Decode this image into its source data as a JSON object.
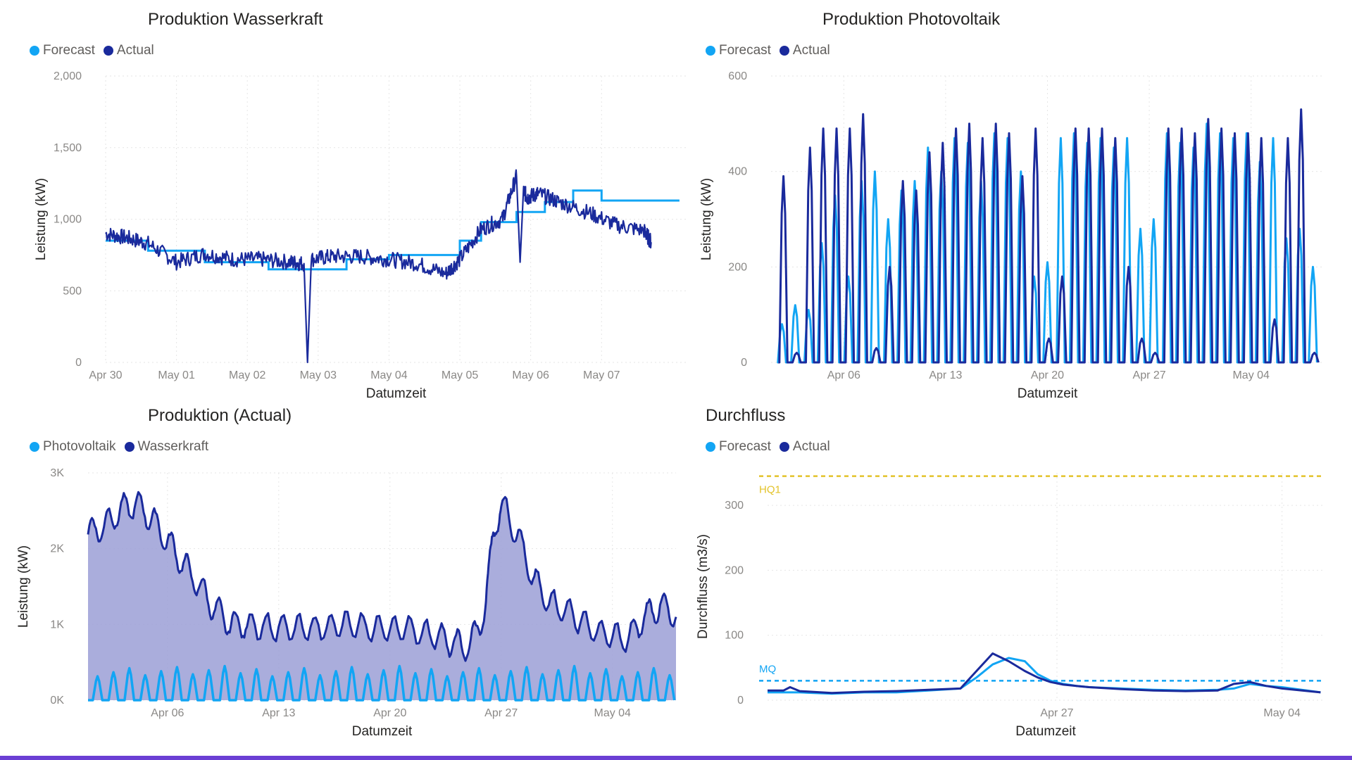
{
  "chart_data": [
    {
      "type": "line",
      "title": "Produktion Wasserkraft",
      "xlabel": "Datumzeit",
      "ylabel": "Leistung (kW)",
      "ylim": [
        0,
        2000
      ],
      "yticks": [
        "0",
        "500",
        "1,000",
        "1,500",
        "2,000"
      ],
      "yticks_values": [
        0,
        500,
        1000,
        1500,
        2000
      ],
      "xticks": [
        "Apr 30",
        "May 01",
        "May 02",
        "May 03",
        "May 04",
        "May 05",
        "May 06",
        "May 07"
      ],
      "xlim": [
        0,
        8.2
      ],
      "grid": true,
      "legend": "top-left",
      "series": [
        {
          "name": "Forecast",
          "color": "#12a5f4",
          "x": [
            0,
            0.6,
            0.6,
            1.4,
            1.4,
            2.3,
            2.3,
            3.4,
            3.4,
            4.0,
            4.0,
            5.0,
            5.0,
            5.3,
            5.3,
            5.8,
            5.8,
            6.2,
            6.2,
            6.6,
            6.6,
            7.0,
            7.0,
            8.1
          ],
          "y": [
            850,
            850,
            780,
            780,
            700,
            700,
            650,
            650,
            720,
            720,
            750,
            750,
            850,
            850,
            980,
            980,
            1050,
            1050,
            1120,
            1120,
            1200,
            1200,
            1130,
            1130
          ]
        },
        {
          "name": "Actual",
          "color": "#1a2a9c",
          "x": [
            0,
            0.3,
            0.6,
            1.0,
            1.4,
            1.8,
            2.2,
            2.6,
            2.8,
            2.85,
            2.9,
            3.2,
            3.6,
            4.0,
            4.4,
            4.8,
            5.0,
            5.3,
            5.6,
            5.8,
            5.85,
            5.9,
            5.95,
            6.1,
            6.4,
            6.8,
            7.2,
            7.6,
            7.7
          ],
          "y": [
            900,
            870,
            830,
            700,
            760,
            720,
            720,
            700,
            690,
            0,
            720,
            740,
            740,
            720,
            690,
            620,
            720,
            930,
            1000,
            1300,
            700,
            1200,
            1150,
            1180,
            1120,
            1050,
            960,
            920,
            840
          ]
        }
      ]
    },
    {
      "type": "line",
      "title": "Produktion Photovoltaik",
      "xlabel": "Datumzeit",
      "ylabel": "Leistung (kW)",
      "ylim": [
        0,
        600
      ],
      "yticks": [
        "0",
        "200",
        "400",
        "600"
      ],
      "yticks_values": [
        0,
        200,
        400,
        600
      ],
      "xticks": [
        "Apr 06",
        "Apr 13",
        "Apr 20",
        "Apr 27",
        "May 04"
      ],
      "xticks_values": [
        5,
        12,
        19,
        26,
        33
      ],
      "xlim": [
        0,
        38
      ],
      "grid": true,
      "legend": "top-left",
      "series": [
        {
          "name": "Forecast",
          "color": "#12a5f4",
          "peaks": [
            80,
            120,
            110,
            250,
            350,
            180,
            380,
            400,
            300,
            360,
            380,
            450,
            400,
            470,
            460,
            380,
            480,
            470,
            400,
            180,
            210,
            470,
            480,
            460,
            470,
            450,
            470,
            280,
            300,
            480,
            460,
            450,
            500,
            480,
            470,
            480,
            420,
            470,
            260,
            280,
            200
          ]
        },
        {
          "name": "Actual",
          "color": "#1a2a9c",
          "peaks": [
            390,
            20,
            450,
            490,
            490,
            490,
            520,
            30,
            200,
            380,
            360,
            440,
            460,
            490,
            500,
            470,
            500,
            480,
            390,
            490,
            50,
            180,
            490,
            490,
            490,
            470,
            200,
            50,
            20,
            490,
            490,
            480,
            510,
            490,
            480,
            480,
            470,
            90,
            470,
            530,
            20
          ]
        }
      ]
    },
    {
      "type": "area",
      "title": "Produktion (Actual)",
      "xlabel": "Datumzeit",
      "ylabel": "Leistung (kW)",
      "ylim": [
        0,
        3000
      ],
      "yticks": [
        "0K",
        "1K",
        "2K",
        "3K"
      ],
      "yticks_values": [
        0,
        1000,
        2000,
        3000
      ],
      "xticks": [
        "Apr 06",
        "Apr 13",
        "Apr 20",
        "Apr 27",
        "May 04"
      ],
      "xticks_values": [
        5,
        12,
        19,
        26,
        33
      ],
      "xlim": [
        0,
        37
      ],
      "grid": true,
      "legend": "top-left",
      "series": [
        {
          "name": "Photovoltaik",
          "color": "#12a5f4",
          "x": [
            0,
            37
          ],
          "daily_peak": 450
        },
        {
          "name": "Wasserkraft",
          "color": "#1a2a9c",
          "fill": "#9b9fd6",
          "x": [
            0,
            1,
            2,
            3,
            4,
            5,
            6,
            7,
            8,
            9,
            10,
            12,
            14,
            16,
            18,
            20,
            22,
            23,
            24,
            25,
            25.5,
            26,
            27,
            28,
            29,
            30,
            32,
            34,
            35,
            36,
            37
          ],
          "y": [
            2200,
            2300,
            2500,
            2600,
            2400,
            2100,
            1800,
            1500,
            1200,
            1000,
            1000,
            950,
            950,
            1000,
            950,
            950,
            850,
            750,
            700,
            1200,
            2200,
            2600,
            2200,
            1600,
            1300,
            1200,
            900,
            800,
            1100,
            1250,
            1100
          ]
        }
      ]
    },
    {
      "type": "line",
      "title": "Durchfluss",
      "xlabel": "Datumzeit",
      "ylabel": "Durchfluss (m3/s)",
      "ylim": [
        0,
        350
      ],
      "yticks": [
        "0",
        "100",
        "200",
        "300"
      ],
      "yticks_values": [
        0,
        100,
        200,
        300
      ],
      "xticks": [
        "Apr 27",
        "May 04"
      ],
      "xticks_values": [
        9,
        16
      ],
      "xlim": [
        0,
        17.3
      ],
      "grid": true,
      "legend": "top-left",
      "reference_lines": [
        {
          "label": "HQ1",
          "value": 345,
          "color": "#e3c32a"
        },
        {
          "label": "MQ",
          "value": 30,
          "color": "#12a5f4"
        }
      ],
      "series": [
        {
          "name": "Forecast",
          "color": "#12a5f4",
          "x": [
            0,
            1,
            2,
            3,
            4,
            5,
            6,
            6.5,
            7,
            7.5,
            8,
            8.4,
            8.8,
            9.2,
            9.6,
            10,
            11,
            12,
            13,
            14,
            14.5,
            15,
            15.5,
            16,
            17.2
          ],
          "y": [
            12,
            12,
            10,
            12,
            12,
            15,
            18,
            35,
            55,
            65,
            60,
            40,
            30,
            25,
            22,
            20,
            18,
            16,
            15,
            16,
            18,
            25,
            22,
            20,
            12
          ]
        },
        {
          "name": "Actual",
          "color": "#1a2a9c",
          "x": [
            0,
            0.5,
            0.7,
            1,
            2,
            3,
            4,
            5,
            6,
            6.5,
            7,
            7.5,
            8,
            8.4,
            8.8,
            9.2,
            9.6,
            10,
            11,
            12,
            13,
            14,
            14.5,
            15,
            15.5,
            16,
            17.2
          ],
          "y": [
            15,
            15,
            20,
            14,
            11,
            13,
            14,
            16,
            18,
            45,
            72,
            60,
            45,
            35,
            28,
            24,
            22,
            20,
            17,
            15,
            14,
            15,
            25,
            28,
            22,
            18,
            12
          ]
        }
      ]
    }
  ]
}
